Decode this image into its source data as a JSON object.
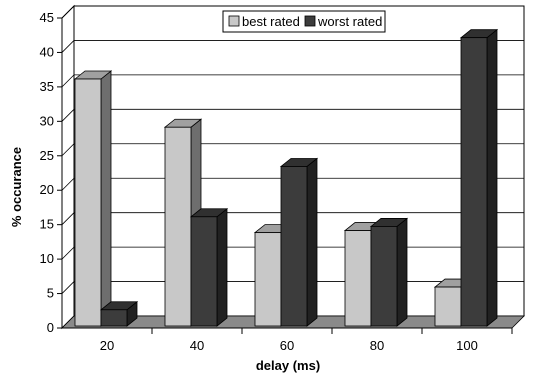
{
  "chart_data": {
    "type": "bar",
    "title": "",
    "xlabel": "delay (ms)",
    "ylabel": "% occurance",
    "categories": [
      "20",
      "40",
      "60",
      "80",
      "100"
    ],
    "series": [
      {
        "name": "best rated",
        "values": [
          36,
          29,
          13.7,
          14,
          5.8
        ],
        "color": "#c8c8c8"
      },
      {
        "name": "worst rated",
        "values": [
          2.5,
          16,
          23.3,
          14.6,
          42
        ],
        "color": "#3c3c3c"
      }
    ],
    "ylim": [
      0,
      45
    ],
    "yticks": [
      "0",
      "5",
      "10",
      "15",
      "20",
      "25",
      "30",
      "35",
      "40",
      "45"
    ],
    "grid": true,
    "legend_position": "top-right",
    "style": "3d-bars"
  }
}
